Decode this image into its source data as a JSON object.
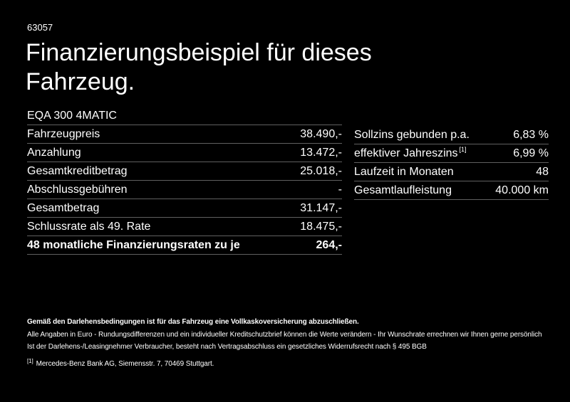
{
  "colors": {
    "background": "#000000",
    "text": "#ffffff",
    "divider": "#606060"
  },
  "header": {
    "ref_number": "63057",
    "title": "Finanzierungsbeispiel für dieses Fahrzeug."
  },
  "vehicle": {
    "model": "EQA 300 4MATIC"
  },
  "finance_table": {
    "rows": [
      {
        "label": "Fahrzeugpreis",
        "value": "38.490,-"
      },
      {
        "label": "Anzahlung",
        "value": "13.472,-"
      },
      {
        "label": "Gesamtkreditbetrag",
        "value": "25.018,-"
      },
      {
        "label": "Abschlussgebühren",
        "value": "-"
      },
      {
        "label": "Gesamtbetrag",
        "value": "31.147,-"
      },
      {
        "label": "Schlussrate als 49. Rate",
        "value": "18.475,-"
      }
    ],
    "total_row": {
      "label": "48 monatliche Finanzierungsraten zu je",
      "value": "264,-"
    }
  },
  "conditions_table": {
    "rows": [
      {
        "label": "Sollzins gebunden p.a.",
        "footnote_ref": "",
        "value": "6,83 %"
      },
      {
        "label": "effektiver Jahreszins",
        "footnote_ref": "[1]",
        "value": "6,99 %"
      },
      {
        "label": "Laufzeit in Monaten",
        "footnote_ref": "",
        "value": "48"
      },
      {
        "label": "Gesamtlaufleistung",
        "footnote_ref": "",
        "value": "40.000 km"
      }
    ]
  },
  "footer": {
    "insurance_note": "Gemäß den Darlehensbedingungen ist für das Fahrzeug eine Vollkaskoversicherung abzuschließen.",
    "disclaimer_line1": "Alle Angaben in Euro - Rundungsdifferenzen und ein individueller Kreditschutzbrief können die Werte verändern - Ihr Wunschrate errechnen wir Ihnen gerne persönlich",
    "disclaimer_line2": "Ist der Darlehens-/Leasingnehmer Verbraucher, besteht nach Vertragsabschluss ein gesetzliches Widerrufsrecht nach § 495 BGB",
    "footnote_marker": "[1]",
    "footnote_text": "Mercedes-Benz Bank AG, Siemensstr. 7, 70469 Stuttgart."
  }
}
